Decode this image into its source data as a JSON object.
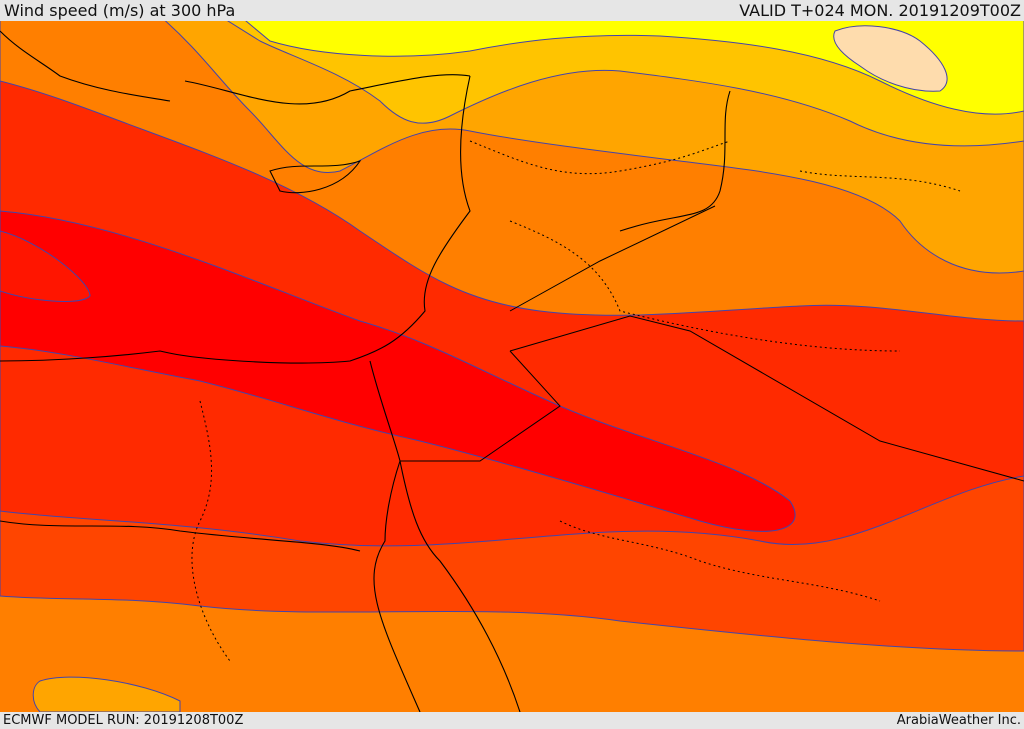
{
  "header": {
    "title": "Wind speed (m/s) at 300 hPa",
    "valid": "VALID T+024 MON. 20191209T00Z"
  },
  "footer": {
    "model_run": "ECMWF MODEL RUN: 20191208T00Z",
    "credit": "ArabiaWeather Inc."
  },
  "map": {
    "field": "wind-speed-300hPa",
    "palette": [
      "#ffff00",
      "#ffc400",
      "#ffa500",
      "#ff7f00",
      "#ff4500",
      "#ff2a00",
      "#ff0000",
      "#fedcad"
    ],
    "contour_color": "#4444aa",
    "coast_color": "#000000"
  }
}
